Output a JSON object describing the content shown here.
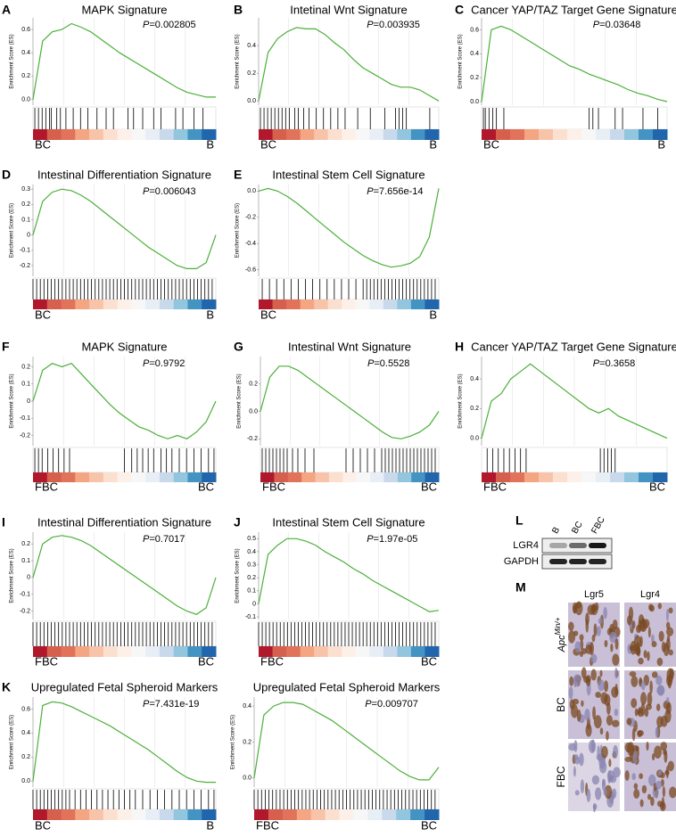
{
  "chart_data": [
    {
      "type": "gsea",
      "panel": "A",
      "title": "MAPK Signature",
      "annotation": {
        "symbol": "P",
        "text": "=0.002805"
      },
      "y_label": "Enrichment Score (ES)",
      "left_label": "BC",
      "right_label": "B",
      "color": "#4caf3a",
      "ylim": [
        -0.05,
        0.7
      ],
      "yticks": [
        {
          "value": 0,
          "label": "0.0"
        },
        0.2,
        0.4,
        0.6
      ],
      "values": [
        0,
        0.5,
        0.58,
        0.6,
        0.65,
        0.62,
        0.58,
        0.52,
        0.46,
        0.4,
        0.35,
        0.3,
        0.25,
        0.2,
        0.15,
        0.1,
        0.06,
        0.04,
        0.02,
        0.02
      ],
      "hits": [
        1,
        3,
        5,
        7,
        9,
        10,
        13,
        15,
        18,
        22,
        26,
        30,
        35,
        40,
        44,
        52,
        55,
        60,
        66,
        70,
        78,
        82,
        88,
        93
      ]
    },
    {
      "type": "gsea",
      "panel": "B",
      "title": "Intetinal Wnt Signature",
      "annotation": {
        "symbol": "P",
        "text": "=0.003935"
      },
      "y_label": "Enrichment Score (ES)",
      "left_label": "BC",
      "right_label": "B",
      "color": "#4caf3a",
      "ylim": [
        -0.03,
        0.6
      ],
      "yticks": [
        {
          "value": 0,
          "label": "0.0"
        },
        0.2,
        0.4
      ],
      "values": [
        0,
        0.35,
        0.45,
        0.5,
        0.53,
        0.52,
        0.52,
        0.48,
        0.42,
        0.37,
        0.3,
        0.24,
        0.2,
        0.16,
        0.12,
        0.1,
        0.1,
        0.08,
        0.04,
        0
      ],
      "hits": [
        1,
        3,
        5,
        7,
        9,
        11,
        13,
        15,
        17,
        20,
        22,
        25,
        28,
        32,
        36,
        40,
        44,
        48,
        55,
        62,
        70,
        76,
        78,
        80,
        82,
        95
      ]
    },
    {
      "type": "gsea",
      "panel": "C",
      "title": "Cancer YAP/TAZ Target Gene Signature",
      "annotation": {
        "symbol": "P",
        "text": "=0.03648"
      },
      "y_label": "Enrichment Score (ES)",
      "left_label": "BC",
      "right_label": "B",
      "color": "#4caf3a",
      "ylim": [
        -0.03,
        0.7
      ],
      "yticks": [
        {
          "value": 0,
          "label": "0.0"
        },
        0.2,
        0.4,
        0.6
      ],
      "values": [
        0,
        0.6,
        0.63,
        0.6,
        0.55,
        0.5,
        0.45,
        0.4,
        0.35,
        0.3,
        0.27,
        0.23,
        0.2,
        0.17,
        0.14,
        0.1,
        0.07,
        0.05,
        0.02,
        0
      ],
      "hits": [
        1,
        2,
        4,
        6,
        8,
        12,
        58,
        60,
        63,
        72,
        76,
        87,
        95
      ]
    },
    {
      "type": "gsea",
      "panel": "D",
      "title": "Intestinal Differentiation Signature",
      "annotation": {
        "symbol": "P",
        "text": "=0.006043"
      },
      "y_label": "Enrichment Score (ES)",
      "left_label": "BC",
      "right_label": "B",
      "color": "#4caf3a",
      "ylim": [
        -0.27,
        0.33
      ],
      "yticks": [
        0.3,
        0.2,
        0.1,
        0,
        -0.1,
        -0.2
      ],
      "values": [
        0,
        0.22,
        0.28,
        0.3,
        0.29,
        0.26,
        0.22,
        0.17,
        0.12,
        0.07,
        0.02,
        -0.03,
        -0.08,
        -0.12,
        -0.16,
        -0.2,
        -0.22,
        -0.22,
        -0.18,
        0
      ],
      "hits": [
        0,
        2,
        4,
        6,
        8,
        10,
        12,
        14,
        16,
        18,
        20,
        22,
        24,
        26,
        28,
        30,
        32,
        34,
        36,
        38,
        40,
        42,
        44,
        46,
        48,
        50,
        52,
        54,
        56,
        58,
        60,
        62,
        64,
        66,
        68,
        70,
        72,
        74,
        76,
        78,
        80,
        82,
        84,
        86,
        88,
        90,
        92,
        94,
        96,
        98
      ]
    },
    {
      "type": "gsea",
      "panel": "E",
      "title": "Intestinal Stem Cell Signature",
      "annotation": {
        "symbol": "P",
        "text": "=7.656e-14"
      },
      "y_label": "Enrichment Score (ES)",
      "left_label": "BC",
      "right_label": "B",
      "color": "#4caf3a",
      "ylim": [
        -0.65,
        0.05
      ],
      "yticks": [
        {
          "value": 0,
          "label": "0.0"
        },
        -0.2,
        -0.4,
        -0.6
      ],
      "values": [
        0,
        0.02,
        0,
        -0.04,
        -0.09,
        -0.15,
        -0.21,
        -0.27,
        -0.33,
        -0.39,
        -0.44,
        -0.49,
        -0.53,
        -0.56,
        -0.58,
        -0.57,
        -0.55,
        -0.5,
        -0.35,
        0.02
      ],
      "hits": [
        2,
        6,
        10,
        14,
        18,
        22,
        26,
        30,
        34,
        38,
        42,
        46,
        50,
        54,
        58,
        60,
        62,
        64,
        66,
        68,
        70,
        72,
        74,
        76,
        78,
        80,
        82,
        84,
        86,
        88,
        90,
        92,
        94,
        96,
        98
      ]
    },
    {
      "type": "gsea",
      "panel": "F",
      "title": "MAPK Signature",
      "annotation": {
        "symbol": "P",
        "text": "=0.9792"
      },
      "y_label": "Enrichment Score (ES)",
      "left_label": "FBC",
      "right_label": "BC",
      "color": "#4caf3a",
      "ylim": [
        -0.26,
        0.26
      ],
      "yticks": [
        0.2,
        0.1,
        0,
        -0.1,
        -0.2
      ],
      "values": [
        0,
        0.18,
        0.22,
        0.2,
        0.22,
        0.16,
        0.1,
        0.04,
        -0.02,
        -0.07,
        -0.11,
        -0.15,
        -0.17,
        -0.2,
        -0.22,
        -0.2,
        -0.22,
        -0.18,
        -0.12,
        0
      ],
      "hits": [
        1,
        3,
        5,
        8,
        11,
        14,
        17,
        20,
        50,
        54,
        57,
        60,
        63,
        66,
        70,
        73,
        76,
        80,
        84,
        88,
        92,
        96,
        99
      ]
    },
    {
      "type": "gsea",
      "panel": "G",
      "title": "Intestinal Wnt Signature",
      "annotation": {
        "symbol": "P",
        "text": "=0.5528"
      },
      "y_label": "Enrichment Score (ES)",
      "left_label": "FBC",
      "right_label": "BC",
      "color": "#4caf3a",
      "ylim": [
        -0.25,
        0.4
      ],
      "yticks": [
        0.2,
        {
          "value": 0,
          "label": "0.0"
        },
        -0.2
      ],
      "values": [
        0,
        0.25,
        0.33,
        0.33,
        0.3,
        0.25,
        0.2,
        0.15,
        0.1,
        0.05,
        0,
        -0.05,
        -0.1,
        -0.15,
        -0.19,
        -0.2,
        -0.18,
        -0.15,
        -0.1,
        0
      ],
      "hits": [
        1,
        3,
        5,
        7,
        9,
        11,
        13,
        15,
        18,
        21,
        25,
        30,
        48,
        52,
        56,
        60,
        64,
        68,
        70,
        72,
        74,
        76,
        78,
        80,
        82,
        84,
        86,
        88,
        90,
        92,
        94,
        96,
        98
      ]
    },
    {
      "type": "gsea",
      "panel": "H",
      "title": "Cancer YAP/TAZ Target Gene Signature",
      "annotation": {
        "symbol": "P",
        "text": "=0.3658"
      },
      "y_label": "Enrichment Score (ES)",
      "left_label": "FBC",
      "right_label": "BC",
      "color": "#4caf3a",
      "ylim": [
        -0.05,
        0.55
      ],
      "yticks": [
        0.4,
        0.2,
        {
          "value": 0,
          "label": "0.0"
        }
      ],
      "values": [
        0,
        0.25,
        0.3,
        0.4,
        0.45,
        0.5,
        0.45,
        0.4,
        0.35,
        0.3,
        0.25,
        0.2,
        0.17,
        0.2,
        0.15,
        0.12,
        0.09,
        0.06,
        0.03,
        0
      ],
      "hits": [
        3,
        6,
        9,
        12,
        15,
        18,
        21,
        24,
        64,
        66,
        68,
        70,
        72
      ]
    },
    {
      "type": "gsea",
      "panel": "I",
      "title": "Intestinal Differentiation Signature",
      "annotation": {
        "symbol": "P",
        "text": "=0.7017"
      },
      "y_label": "Enrichment Score (ES)",
      "left_label": "FBC",
      "right_label": "BC",
      "color": "#4caf3a",
      "ylim": [
        -0.25,
        0.27
      ],
      "yticks": [
        0.2,
        0.1,
        0,
        -0.1,
        -0.2
      ],
      "values": [
        0,
        0.2,
        0.24,
        0.25,
        0.24,
        0.22,
        0.19,
        0.15,
        0.11,
        0.07,
        0.03,
        -0.01,
        -0.05,
        -0.09,
        -0.13,
        -0.17,
        -0.2,
        -0.22,
        -0.18,
        0
      ],
      "hits": [
        0,
        2,
        4,
        6,
        8,
        10,
        12,
        14,
        16,
        18,
        20,
        22,
        24,
        26,
        28,
        30,
        32,
        34,
        36,
        38,
        40,
        42,
        44,
        46,
        48,
        50,
        52,
        54,
        56,
        58,
        60,
        62,
        64,
        66,
        68,
        70,
        72,
        74,
        76,
        78,
        80,
        82,
        84,
        86,
        88,
        90,
        92,
        94,
        96,
        98
      ]
    },
    {
      "type": "gsea",
      "panel": "J",
      "title": "Intestinal Stem Cell Signature",
      "annotation": {
        "symbol": "P",
        "text": "=1.97e-05"
      },
      "y_label": "Enrichment Score (ES)",
      "left_label": "FBC",
      "right_label": "BC",
      "color": "#4caf3a",
      "ylim": [
        -0.12,
        0.55
      ],
      "yticks": [
        0.5,
        0.4,
        0.3,
        0.2,
        0.1,
        0,
        -0.1
      ],
      "values": [
        0,
        0.38,
        0.45,
        0.5,
        0.5,
        0.48,
        0.45,
        0.4,
        0.36,
        0.32,
        0.27,
        0.23,
        0.18,
        0.14,
        0.1,
        0.06,
        0.02,
        -0.02,
        -0.06,
        -0.05
      ],
      "hits": [
        0,
        2,
        4,
        6,
        8,
        10,
        12,
        14,
        16,
        18,
        20,
        22,
        24,
        26,
        28,
        30,
        32,
        34,
        36,
        38,
        40,
        42,
        44,
        46,
        48,
        50,
        52,
        54,
        56,
        58,
        60,
        62,
        64,
        66,
        68,
        70,
        72,
        74,
        76,
        78,
        80,
        82,
        84,
        86,
        88,
        90,
        92,
        94,
        96,
        98
      ]
    },
    {
      "type": "gsea",
      "panel": "K",
      "title": "Upregulated Fetal Spheroid Markers",
      "annotation": {
        "symbol": "P",
        "text": "=7.431e-19"
      },
      "y_label": "Enrichment Score (ES)",
      "left_label": "BC",
      "right_label": "B",
      "color": "#4caf3a",
      "ylim": [
        -0.05,
        0.7
      ],
      "yticks": [
        0.6,
        0.4,
        0.2,
        {
          "value": 0,
          "label": "0.0"
        }
      ],
      "values": [
        0,
        0.63,
        0.66,
        0.65,
        0.62,
        0.58,
        0.54,
        0.5,
        0.46,
        0.41,
        0.36,
        0.31,
        0.26,
        0.2,
        0.14,
        0.08,
        0.03,
        0,
        -0.01,
        -0.01
      ],
      "hits": [
        0,
        2,
        4,
        6,
        8,
        10,
        12,
        14,
        16,
        18,
        20,
        23,
        26,
        29,
        32,
        35,
        38,
        41,
        44,
        47,
        50,
        53,
        56,
        60,
        64,
        68,
        72,
        76,
        80,
        84,
        88,
        92,
        96,
        99
      ]
    },
    {
      "type": "gsea",
      "title": "Upregulated Fetal Spheroid Markers",
      "annotation": {
        "symbol": "P",
        "text": "=0.009707"
      },
      "y_label": "Enrichment Score (ES)",
      "left_label": "FBC",
      "right_label": "BC",
      "color": "#4caf3a",
      "ylim": [
        -0.05,
        0.45
      ],
      "yticks": [
        0.4,
        0.2,
        {
          "value": 0,
          "label": "0.0"
        }
      ],
      "values": [
        0,
        0.35,
        0.4,
        0.42,
        0.42,
        0.41,
        0.38,
        0.35,
        0.32,
        0.28,
        0.24,
        0.2,
        0.16,
        0.12,
        0.08,
        0.04,
        0.01,
        -0.01,
        -0.01,
        0.06
      ],
      "hits": [
        0,
        2,
        4,
        6,
        8,
        10,
        12,
        14,
        16,
        18,
        20,
        22,
        24,
        26,
        28,
        30,
        32,
        34,
        36,
        38,
        40,
        42,
        44,
        46,
        48,
        50,
        52,
        54,
        56,
        58,
        60,
        62,
        64,
        66,
        68,
        70,
        72,
        74,
        76,
        78,
        80,
        82,
        84,
        86,
        88,
        90,
        92,
        94,
        96,
        98
      ]
    }
  ],
  "blot": {
    "panel": "L",
    "lanes": [
      "B",
      "BC",
      "FBC"
    ],
    "rows": [
      "LGR4",
      "GAPDH"
    ]
  },
  "ihc": {
    "panel": "M",
    "columns": [
      "Lgr5",
      "Lgr4"
    ],
    "rows": [
      {
        "gene": "Apc",
        "allele": "Min/+"
      },
      "BC",
      "FBC"
    ]
  }
}
